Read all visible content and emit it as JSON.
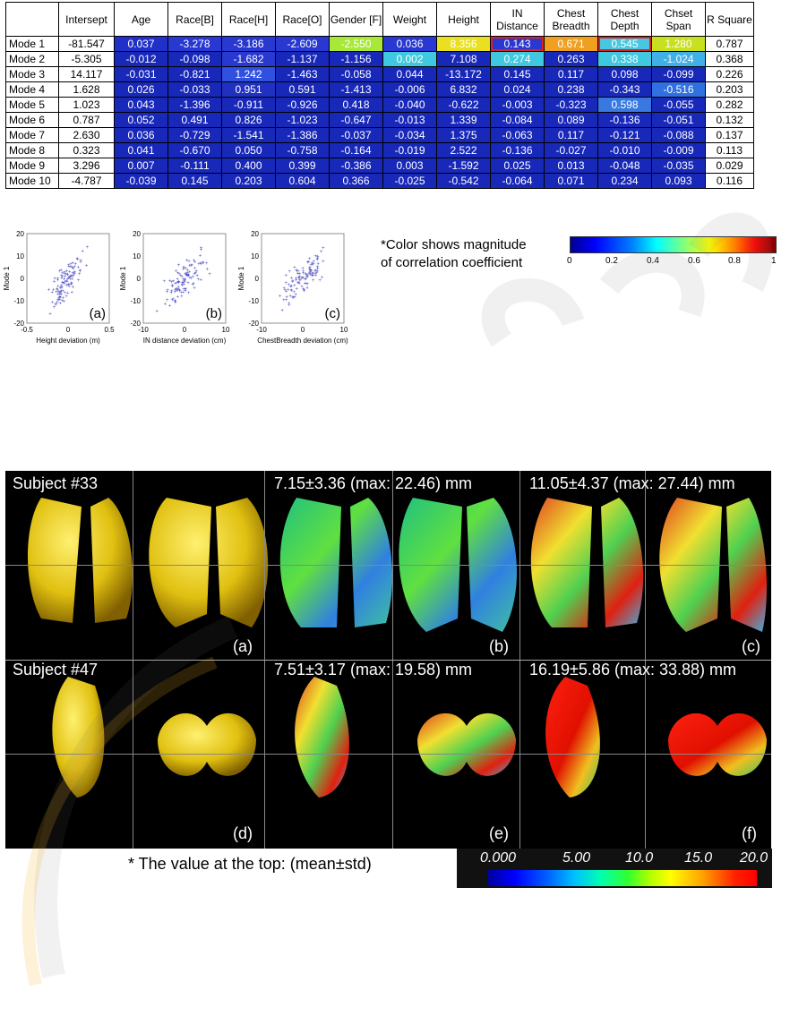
{
  "table": {
    "headers": [
      "",
      "Intersept",
      "Age",
      "Race[B]",
      "Race[H]",
      "Race[O]",
      "Gender [F]",
      "Weight",
      "Height",
      "IN Distance",
      "Chest Breadth",
      "Chest Depth",
      "Chset Span",
      "R Square"
    ],
    "rows": [
      {
        "label": "Mode 1",
        "intercept": "-81.547",
        "cells": [
          "0.037",
          "-3.278",
          "-3.186",
          "-2.609",
          "-2.550",
          "0.036",
          "8.356",
          "0.143",
          "0.671",
          "0.545",
          "1.280"
        ],
        "r2": "0.787"
      },
      {
        "label": "Mode 2",
        "intercept": "-5.305",
        "cells": [
          "-0.012",
          "-0.098",
          "-1.682",
          "-1.137",
          "-1.156",
          "0.002",
          "7.108",
          "0.274",
          "0.263",
          "0.338",
          "-1.024"
        ],
        "r2": "0.368"
      },
      {
        "label": "Mode 3",
        "intercept": "14.117",
        "cells": [
          "-0.031",
          "-0.821",
          "1.242",
          "-1.463",
          "-0.058",
          "0.044",
          "-13.172",
          "0.145",
          "0.117",
          "0.098",
          "-0.099"
        ],
        "r2": "0.226"
      },
      {
        "label": "Mode 4",
        "intercept": "1.628",
        "cells": [
          "0.026",
          "-0.033",
          "0.951",
          "0.591",
          "-1.413",
          "-0.006",
          "6.832",
          "0.024",
          "0.238",
          "-0.343",
          "-0.516"
        ],
        "r2": "0.203"
      },
      {
        "label": "Mode 5",
        "intercept": "1.023",
        "cells": [
          "0.043",
          "-1.396",
          "-0.911",
          "-0.926",
          "0.418",
          "-0.040",
          "-0.622",
          "-0.003",
          "-0.323",
          "0.598",
          "-0.055"
        ],
        "r2": "0.282"
      },
      {
        "label": "Mode 6",
        "intercept": "0.787",
        "cells": [
          "0.052",
          "0.491",
          "0.826",
          "-1.023",
          "-0.647",
          "-0.013",
          "1.339",
          "-0.084",
          "0.089",
          "-0.136",
          "-0.051"
        ],
        "r2": "0.132"
      },
      {
        "label": "Mode 7",
        "intercept": "2.630",
        "cells": [
          "0.036",
          "-0.729",
          "-1.541",
          "-1.386",
          "-0.037",
          "-0.034",
          "1.375",
          "-0.063",
          "0.117",
          "-0.121",
          "-0.088"
        ],
        "r2": "0.137"
      },
      {
        "label": "Mode 8",
        "intercept": "0.323",
        "cells": [
          "0.041",
          "-0.670",
          "0.050",
          "-0.758",
          "-0.164",
          "-0.019",
          "2.522",
          "-0.136",
          "-0.027",
          "-0.010",
          "-0.009"
        ],
        "r2": "0.113"
      },
      {
        "label": "Mode 9",
        "intercept": "3.296",
        "cells": [
          "0.007",
          "-0.111",
          "0.400",
          "0.399",
          "-0.386",
          "0.003",
          "-1.592",
          "0.025",
          "0.013",
          "-0.048",
          "-0.035"
        ],
        "r2": "0.029"
      },
      {
        "label": "Mode 10",
        "intercept": "-4.787",
        "cells": [
          "-0.039",
          "0.145",
          "0.203",
          "0.604",
          "0.366",
          "-0.025",
          "-0.542",
          "-0.064",
          "0.071",
          "0.234",
          "0.093"
        ],
        "r2": "0.116"
      }
    ],
    "cell_colors": [
      [
        "#2030c8",
        "#2838d0",
        "#2838d0",
        "#2838d0",
        "#a8e838",
        "#2838d0",
        "#e8e020",
        "#2838d0",
        "#f0a020",
        "#48c8e0",
        "#c8e020"
      ],
      [
        "#1828b8",
        "#1828b8",
        "#2838d0",
        "#1828b8",
        "#1828b8",
        "#40c8e0",
        "#1828b8",
        "#40c8e0",
        "#1828b8",
        "#40c8e0",
        "#40b0e8"
      ],
      [
        "#1828b8",
        "#1828b8",
        "#3050e0",
        "#1828b8",
        "#1828b8",
        "#1828b8",
        "#1828b8",
        "#1828b8",
        "#1828b8",
        "#1828b8",
        "#1828b8"
      ],
      [
        "#1828b8",
        "#1828b8",
        "#2030c0",
        "#1828b8",
        "#1828b8",
        "#1828b8",
        "#1828b8",
        "#1828b8",
        "#1828b8",
        "#1828b8",
        "#3070e0"
      ],
      [
        "#1828b8",
        "#1828b8",
        "#1828b8",
        "#1828b8",
        "#1828b8",
        "#1828b8",
        "#1828b8",
        "#1828b8",
        "#1828b8",
        "#3878e0",
        "#1828b8"
      ],
      [
        "#1828b8",
        "#1828b8",
        "#1828b8",
        "#1828b8",
        "#1828b8",
        "#1828b8",
        "#1828b8",
        "#1828b8",
        "#1828b8",
        "#1828b8",
        "#1828b8"
      ],
      [
        "#1828b8",
        "#1828b8",
        "#1828b8",
        "#1828b8",
        "#1828b8",
        "#1828b8",
        "#1828b8",
        "#1828b8",
        "#1828b8",
        "#1828b8",
        "#1828b8"
      ],
      [
        "#1828b8",
        "#1828b8",
        "#1828b8",
        "#1828b8",
        "#1828b8",
        "#1828b8",
        "#1828b8",
        "#1828b8",
        "#1828b8",
        "#1828b8",
        "#1828b8"
      ],
      [
        "#1828b8",
        "#1828b8",
        "#1828b8",
        "#1828b8",
        "#1828b8",
        "#1828b8",
        "#1828b8",
        "#1828b8",
        "#1828b8",
        "#1828b8",
        "#1828b8"
      ],
      [
        "#1828b8",
        "#1828b8",
        "#1828b8",
        "#1828b8",
        "#1828b8",
        "#1828b8",
        "#1828b8",
        "#1828b8",
        "#1828b8",
        "#1828b8",
        "#1828b8"
      ]
    ],
    "highlighted": [
      [
        0,
        7
      ],
      [
        0,
        9
      ]
    ]
  },
  "chart_data": [
    {
      "type": "scatter",
      "panel": "(a)",
      "ylabel": "Mode 1",
      "xlabel": "Height deviation (m)",
      "xlim": [
        -0.5,
        0.5
      ],
      "ylim": [
        -20,
        20
      ],
      "xticks": [
        "-0.5",
        "0",
        "0.5"
      ],
      "yticks": [
        "20",
        "10",
        "0",
        "-10",
        "-20"
      ]
    },
    {
      "type": "scatter",
      "panel": "(b)",
      "ylabel": "Mode 1",
      "xlabel": "IN distance deviation (cm)",
      "xlim": [
        -10,
        10
      ],
      "ylim": [
        -20,
        20
      ],
      "xticks": [
        "-10",
        "0",
        "10"
      ],
      "yticks": [
        "20",
        "10",
        "0",
        "-10",
        "-20"
      ]
    },
    {
      "type": "scatter",
      "panel": "(c)",
      "ylabel": "Mode 1",
      "xlabel": "ChestBreadth deviation (cm)",
      "xlim": [
        -10,
        10
      ],
      "ylim": [
        -20,
        20
      ],
      "xticks": [
        "-10",
        "0",
        "10"
      ],
      "yticks": [
        "20",
        "10",
        "0",
        "-10",
        "-20"
      ]
    }
  ],
  "colorbar1": {
    "note_line1": "*Color shows magnitude",
    "note_line2": "of correlation coefficient",
    "ticks": [
      "0",
      "0.2",
      "0.4",
      "0.6",
      "0.8",
      "1"
    ]
  },
  "panels": {
    "subject33": "Subject #33",
    "subject47": "Subject #47",
    "b_caption": "7.15±3.36 (max: 22.46) mm",
    "c_caption": "11.05±4.37 (max: 27.44) mm",
    "e_caption": "7.51±3.17 (max: 19.58) mm",
    "f_caption": "16.19±5.86 (max: 33.88) mm",
    "letters": [
      "(a)",
      "(b)",
      "(c)",
      "(d)",
      "(e)",
      "(f)"
    ]
  },
  "note2": "* The value at the top: (mean±std)",
  "colorbar2": {
    "ticks": [
      "0.000",
      "5.00",
      "10.0",
      "15.0",
      "20.0"
    ]
  }
}
